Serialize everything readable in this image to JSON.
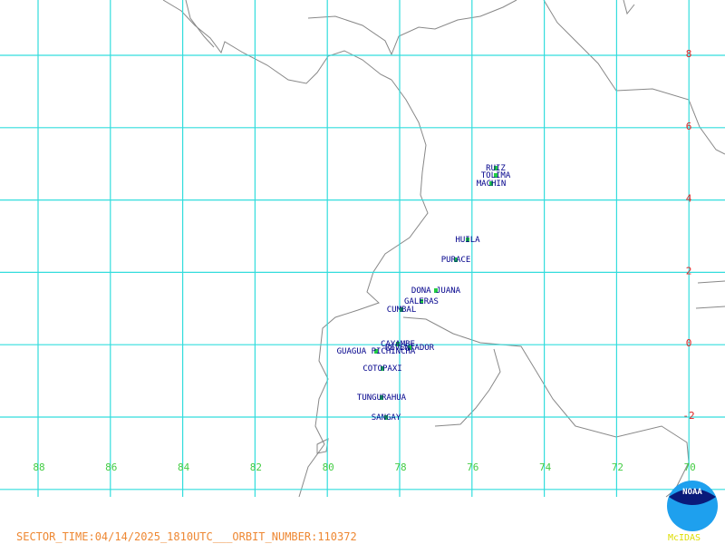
{
  "map": {
    "lat_labels": [
      "8",
      "6",
      "4",
      "2",
      "0",
      "-2"
    ],
    "lon_labels": [
      "88",
      "86",
      "84",
      "82",
      "80",
      "78",
      "76",
      "74",
      "72",
      "70"
    ],
    "volcanoes": [
      "RUIZ",
      "TOLIMA",
      "MACHIN",
      "HUILA",
      "PURACE",
      "DONA JUANA",
      "GALERAS",
      "CUMBAL",
      "CAYAMBE",
      "REVENTADOR",
      "GUAGUA PICHINCHA",
      "COTOPAXI",
      "TUNGURAHUA",
      "SANGAY"
    ],
    "footer": "SECTOR_TIME:04/14/2025_1810UTC___ORBIT_NUMBER:110372",
    "logo": "NOAA",
    "brand": "McIDAS"
  }
}
